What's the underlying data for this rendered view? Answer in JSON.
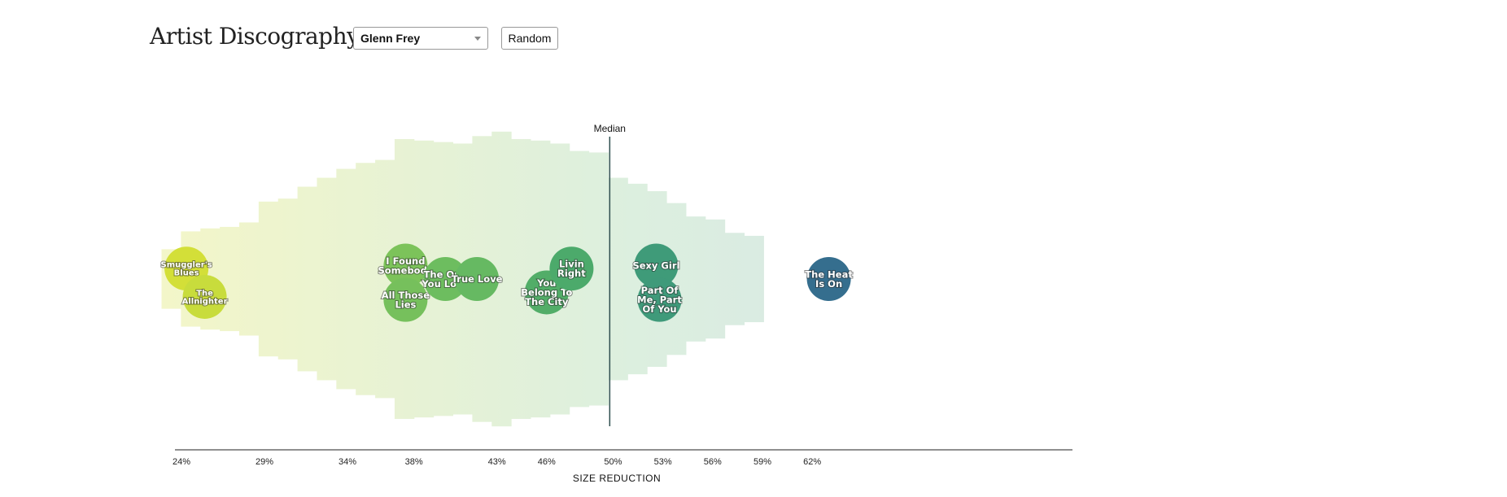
{
  "header": {
    "title": "Artist Discography",
    "artist_select_value": "Glenn Frey",
    "random_label": "Random"
  },
  "chart_data": {
    "type": "scatter",
    "subtype": "beeswarm bubble chart with background distribution bands",
    "xlabel": "SIZE REDUCTION",
    "x_unit": "percent",
    "xlim": [
      23.2,
      63.5
    ],
    "ticks": [
      {
        "value": 24,
        "label": "24%"
      },
      {
        "value": 29,
        "label": "29%"
      },
      {
        "value": 34,
        "label": "34%"
      },
      {
        "value": 38,
        "label": "38%"
      },
      {
        "value": 43,
        "label": "43%"
      },
      {
        "value": 46,
        "label": "46%"
      },
      {
        "value": 50,
        "label": "50%"
      },
      {
        "value": 53,
        "label": "53%"
      },
      {
        "value": 56,
        "label": "56%"
      },
      {
        "value": 59,
        "label": "59%"
      },
      {
        "value": 62,
        "label": "62%"
      }
    ],
    "median": {
      "label": "Median",
      "value": 49.8
    },
    "bands": {
      "x_start": 22.8,
      "x_step": 1.17,
      "heights": [
        0.2,
        0.32,
        0.34,
        0.35,
        0.38,
        0.52,
        0.54,
        0.62,
        0.68,
        0.74,
        0.78,
        0.8,
        0.94,
        0.93,
        0.92,
        0.91,
        0.96,
        0.99,
        0.94,
        0.93,
        0.91,
        0.86,
        0.85,
        0.68,
        0.64,
        0.59,
        0.51,
        0.42,
        0.4,
        0.31,
        0.29
      ],
      "color_start": "#f4f6c8",
      "color_mid": "#dcefdf",
      "color_end": "#d5e1ea"
    },
    "songs": [
      {
        "title": "Smuggler's Blues",
        "x": 24.3,
        "offset": -0.07,
        "color": "#d3df38"
      },
      {
        "title": "The Allnighter",
        "x": 25.4,
        "offset": 0.12,
        "color": "#c8dc3c"
      },
      {
        "title": "I Found Somebody",
        "x": 37.5,
        "offset": -0.09,
        "color": "#7cc35a"
      },
      {
        "title": "All Those Lies",
        "x": 37.5,
        "offset": 0.14,
        "color": "#76c05c"
      },
      {
        "title": "The One You Love",
        "x": 39.9,
        "offset": 0.0,
        "color": "#6dbd5f"
      },
      {
        "title": "True Love",
        "x": 41.8,
        "offset": 0.0,
        "color": "#66b962"
      },
      {
        "title": "You Belong To The City",
        "x": 46.0,
        "offset": 0.09,
        "color": "#52ad68"
      },
      {
        "title": "Livin Right",
        "x": 47.5,
        "offset": -0.07,
        "color": "#4caa6b"
      },
      {
        "title": "Sexy Girl",
        "x": 52.6,
        "offset": -0.09,
        "color": "#3f9b79"
      },
      {
        "title": "Part Of Me, Part Of You",
        "x": 52.8,
        "offset": 0.14,
        "color": "#3f9a7a"
      },
      {
        "title": "The Heat Is On",
        "x": 63.0,
        "offset": 0.0,
        "color": "#356e8e"
      }
    ]
  }
}
